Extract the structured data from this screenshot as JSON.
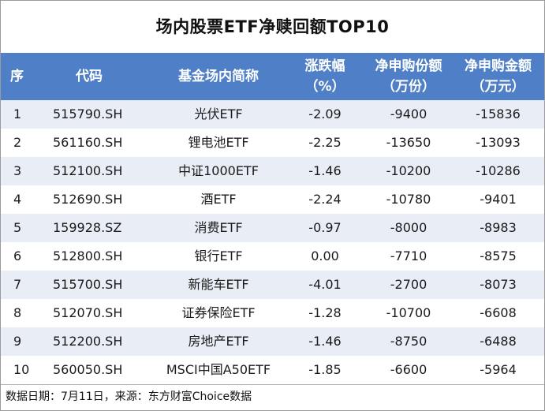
{
  "title": "场内股票ETF净赎回额TOP10",
  "headers": {
    "idx": "序",
    "code": "代码",
    "name": "基金场内简称",
    "change_line1": "涨跌幅",
    "change_line2": "（%）",
    "share_line1": "净申购份额",
    "share_line2": "（万份）",
    "amount_line1": "净申购金额",
    "amount_line2": "（万元）"
  },
  "rows": [
    {
      "idx": "1",
      "code": "515790.SH",
      "name": "光伏ETF",
      "change": "-2.09",
      "share": "-9400",
      "amount": "-15836"
    },
    {
      "idx": "2",
      "code": "561160.SH",
      "name": "锂电池ETF",
      "change": "-2.25",
      "share": "-13650",
      "amount": "-13093"
    },
    {
      "idx": "3",
      "code": "512100.SH",
      "name": "中证1000ETF",
      "change": "-1.46",
      "share": "-10200",
      "amount": "-10286"
    },
    {
      "idx": "4",
      "code": "512690.SH",
      "name": "酒ETF",
      "change": "-2.24",
      "share": "-10780",
      "amount": "-9401"
    },
    {
      "idx": "5",
      "code": "159928.SZ",
      "name": "消费ETF",
      "change": "-0.97",
      "share": "-8000",
      "amount": "-8983"
    },
    {
      "idx": "6",
      "code": "512800.SH",
      "name": "银行ETF",
      "change": "0.00",
      "share": "-7710",
      "amount": "-8575"
    },
    {
      "idx": "7",
      "code": "515700.SH",
      "name": "新能车ETF",
      "change": "-4.01",
      "share": "-2700",
      "amount": "-8073"
    },
    {
      "idx": "8",
      "code": "512070.SH",
      "name": "证券保险ETF",
      "change": "-1.28",
      "share": "-10700",
      "amount": "-6608"
    },
    {
      "idx": "9",
      "code": "512200.SH",
      "name": "房地产ETF",
      "change": "-1.46",
      "share": "-8750",
      "amount": "-6488"
    },
    {
      "idx": "10",
      "code": "560050.SH",
      "name": "MSCI中国A50ETF",
      "change": "-1.85",
      "share": "-6600",
      "amount": "-5964"
    }
  ],
  "footer": "数据日期：7月11日，来源：东方财富Choice数据",
  "colors": {
    "header_bg": "#4f7fc6",
    "alt_row_bg": "#e9edf6"
  }
}
